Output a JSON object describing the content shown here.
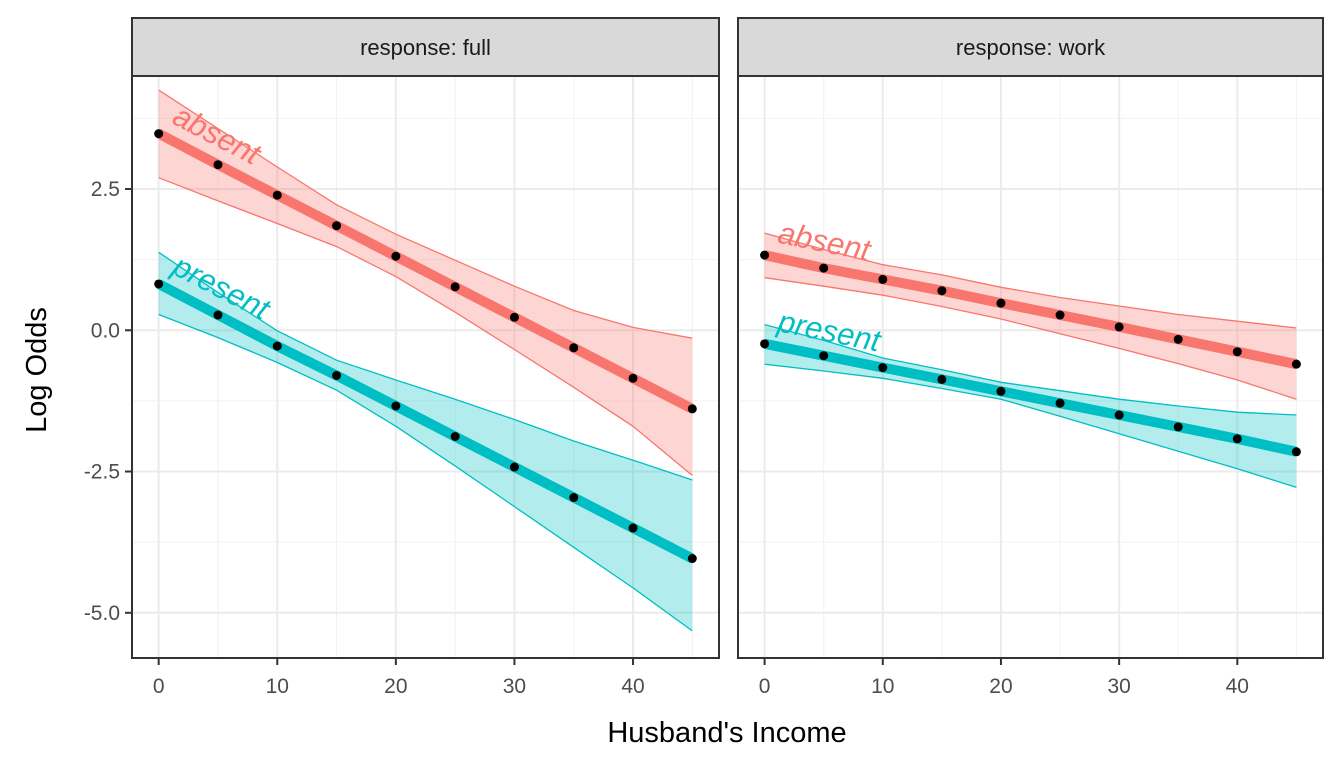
{
  "chart_data": {
    "type": "line",
    "xlabel": "Husband's Income",
    "ylabel": "Log Odds",
    "xlim": [
      -2.25,
      47.25
    ],
    "ylim": [
      -5.8,
      4.5
    ],
    "x_ticks": [
      0,
      10,
      20,
      30,
      40
    ],
    "y_ticks": [
      2.5,
      0.0,
      -2.5,
      -5.0
    ],
    "y_tick_labels": [
      "2.5",
      "0.0",
      "-2.5",
      "-5.0"
    ],
    "grid": true,
    "colors": {
      "absent": "#F8766D",
      "present": "#00BFC4",
      "points": "#000000"
    },
    "panels": [
      {
        "strip_label": "response: full",
        "series": [
          {
            "name": "absent",
            "x": [
              0,
              5,
              10,
              15,
              20,
              25,
              30,
              35,
              40,
              45
            ],
            "y": [
              3.48,
              2.93,
              2.39,
              1.85,
              1.31,
              0.77,
              0.23,
              -0.31,
              -0.85,
              -1.39
            ],
            "lower": [
              2.7,
              2.29,
              1.89,
              1.48,
              0.95,
              0.32,
              -0.34,
              -1.01,
              -1.7,
              -2.57
            ],
            "upper": [
              4.25,
              3.57,
              2.89,
              2.22,
              1.7,
              1.24,
              0.78,
              0.35,
              0.05,
              -0.14
            ]
          },
          {
            "name": "present",
            "x": [
              0,
              5,
              10,
              15,
              20,
              25,
              30,
              35,
              40,
              45
            ],
            "y": [
              0.82,
              0.27,
              -0.28,
              -0.8,
              -1.34,
              -1.88,
              -2.42,
              -2.96,
              -3.5,
              -4.04
            ],
            "lower": [
              0.28,
              -0.13,
              -0.57,
              -1.06,
              -1.7,
              -2.4,
              -3.12,
              -3.84,
              -4.56,
              -5.32
            ],
            "upper": [
              1.38,
              0.67,
              -0.01,
              -0.53,
              -0.88,
              -1.22,
              -1.58,
              -1.96,
              -2.3,
              -2.65
            ]
          }
        ]
      },
      {
        "strip_label": "response: work",
        "series": [
          {
            "name": "absent",
            "x": [
              0,
              5,
              10,
              15,
              20,
              25,
              30,
              35,
              40,
              45
            ],
            "y": [
              1.33,
              1.1,
              0.9,
              0.7,
              0.48,
              0.27,
              0.06,
              -0.16,
              -0.38,
              -0.6
            ],
            "lower": [
              0.93,
              0.78,
              0.62,
              0.42,
              0.2,
              -0.06,
              -0.32,
              -0.59,
              -0.88,
              -1.22
            ],
            "upper": [
              1.72,
              1.43,
              1.16,
              0.98,
              0.76,
              0.58,
              0.43,
              0.28,
              0.16,
              0.04
            ]
          },
          {
            "name": "present",
            "x": [
              0,
              5,
              10,
              15,
              20,
              25,
              30,
              35,
              40,
              45
            ],
            "y": [
              -0.24,
              -0.45,
              -0.66,
              -0.87,
              -1.08,
              -1.29,
              -1.5,
              -1.71,
              -1.92,
              -2.15
            ],
            "lower": [
              -0.6,
              -0.72,
              -0.85,
              -1.03,
              -1.22,
              -1.52,
              -1.83,
              -2.14,
              -2.45,
              -2.78
            ],
            "upper": [
              0.1,
              -0.18,
              -0.49,
              -0.7,
              -0.92,
              -1.07,
              -1.22,
              -1.34,
              -1.45,
              -1.5
            ]
          }
        ]
      }
    ]
  }
}
